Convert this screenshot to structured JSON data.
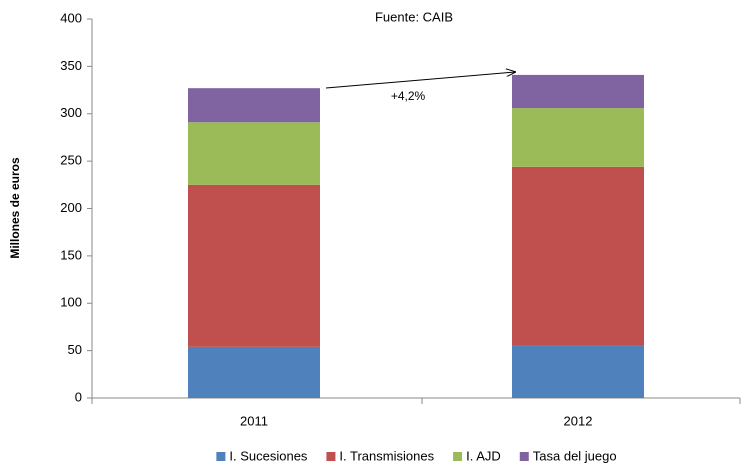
{
  "chart_data": {
    "type": "stacked_bar",
    "annotations": [
      "Fuente:  CAIB",
      "+4,2%"
    ],
    "y_label": "Millones de euros",
    "categories": [
      "2011",
      "2012"
    ],
    "series": [
      {
        "name": "I. Sucesiones",
        "color": "#4f81bd",
        "values": [
          54,
          55
        ]
      },
      {
        "name": "I. Transmisiones",
        "color": "#c0504d",
        "values": [
          171,
          189
        ]
      },
      {
        "name": "I. AJD",
        "color": "#9bbb59",
        "values": [
          66,
          62
        ]
      },
      {
        "name": "Tasa del juego",
        "color": "#8064a2",
        "values": [
          36,
          35
        ]
      }
    ],
    "ylim": [
      0,
      400
    ],
    "yticks": [
      0,
      50,
      100,
      150,
      200,
      250,
      300,
      350,
      400
    ]
  }
}
